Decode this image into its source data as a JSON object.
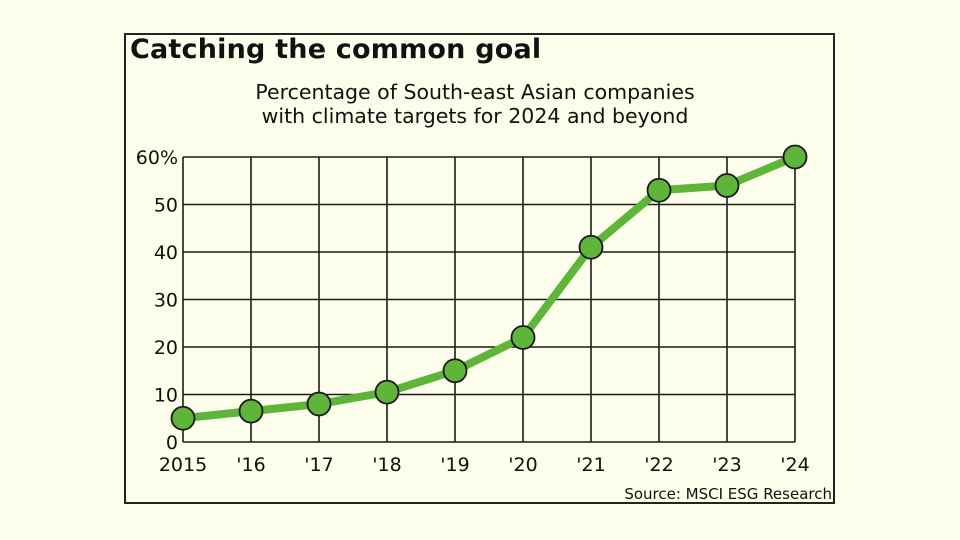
{
  "title": "Catching the common goal",
  "subtitle_lines": [
    "Percentage of South-east Asian companies",
    "with climate targets for 2024 and beyond"
  ],
  "source": "Source: MSCI ESG Research",
  "colors": {
    "background": "#fdfdec",
    "line": "#5fb43a",
    "marker_fill": "#5fb43a",
    "marker_stroke": "#1a1a1a",
    "grid": "#1a1a1a"
  },
  "chart_data": {
    "type": "line",
    "title": "Catching the common goal",
    "subtitle": "Percentage of South-east Asian companies with climate targets for 2024 and beyond",
    "xlabel": "",
    "ylabel": "",
    "categories": [
      "2015",
      "'16",
      "'17",
      "'18",
      "'19",
      "'20",
      "'21",
      "'22",
      "'23",
      "'24"
    ],
    "x": [
      2015,
      2016,
      2017,
      2018,
      2019,
      2020,
      2021,
      2022,
      2023,
      2024
    ],
    "series": [
      {
        "name": "Companies with climate targets (%)",
        "values": [
          5,
          6.5,
          8,
          10.5,
          15,
          22,
          41,
          53,
          54,
          60
        ]
      }
    ],
    "yticks": [
      0,
      10,
      20,
      30,
      40,
      50,
      60
    ],
    "ytick_labels": [
      "0",
      "10",
      "20",
      "30",
      "40",
      "50",
      "60%"
    ],
    "ylim": [
      0,
      60
    ],
    "grid": true,
    "legend": "none",
    "source": "Source: MSCI ESG Research"
  }
}
